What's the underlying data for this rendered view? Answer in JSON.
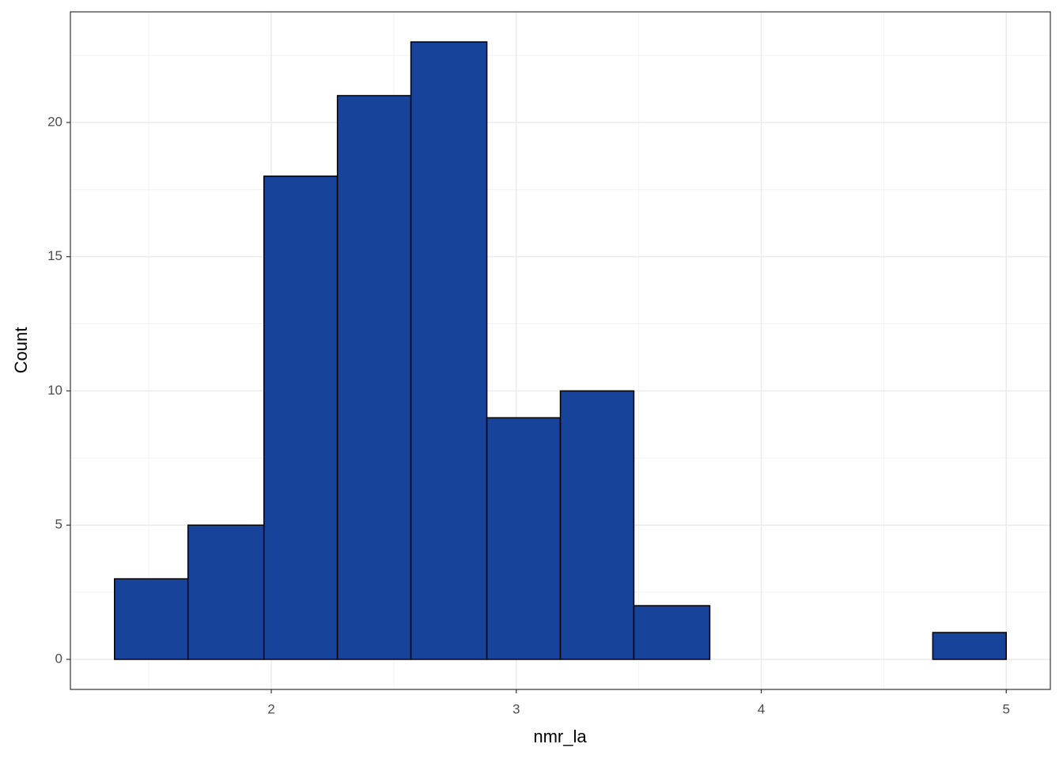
{
  "chart_data": {
    "type": "histogram",
    "x_label": "nmr_la",
    "y_label": "Count",
    "bins": [
      1.36,
      1.66,
      1.97,
      2.27,
      2.57,
      2.88,
      3.18,
      3.48,
      3.79,
      4.09,
      4.4,
      4.7,
      5.0
    ],
    "values": [
      3,
      5,
      18,
      21,
      23,
      9,
      10,
      2,
      0,
      0,
      0,
      1
    ],
    "color": "#18439a",
    "edge_color": "#000000",
    "xlim": [
      1.18,
      5.18
    ],
    "xticks": [
      2,
      3,
      4,
      5
    ],
    "ylim": [
      -1.12,
      24.12
    ],
    "yticks": [
      0,
      5,
      10,
      15,
      20
    ],
    "grid": true
  }
}
